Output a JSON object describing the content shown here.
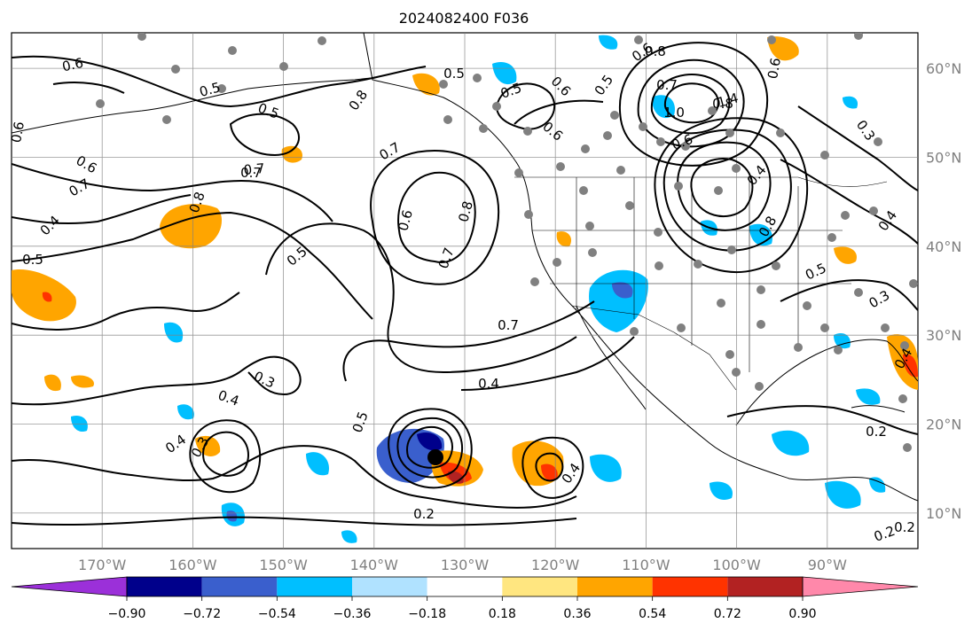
{
  "title": "2024082400 F036",
  "longitude_labels": [
    "170°W",
    "160°W",
    "150°W",
    "140°W",
    "130°W",
    "120°W",
    "110°W",
    "100°W",
    "90°W"
  ],
  "latitude_labels": [
    "60°N",
    "50°N",
    "40°N",
    "30°N",
    "20°N",
    "10°N"
  ],
  "colorbar": {
    "levels": [
      "−0.90",
      "−0.72",
      "−0.54",
      "−0.36",
      "−0.18",
      "0.18",
      "0.36",
      "0.54",
      "0.72",
      "0.90"
    ],
    "colors": [
      "#9b30d9",
      "#00008b",
      "#3a5fcd",
      "#00bfff",
      "#b0e2ff",
      "#ffffff",
      "#ffe680",
      "#ffa500",
      "#ff3300",
      "#b22222",
      "#ff88aa"
    ],
    "extend": "both"
  },
  "contour_labels": [
    "0.6",
    "0.5",
    "0.5",
    "0.7",
    "0.5",
    "0.6",
    "0.7",
    "0.8",
    "0.4",
    "0.5",
    "0.7",
    "0.7",
    "0.8",
    "0.5",
    "0.6",
    "0.8",
    "0.7",
    "0.5",
    "0.6",
    "0.7",
    "0.4",
    "0.3",
    "0.4",
    "0.5",
    "0.4",
    "0.3",
    "0.2",
    "0.4",
    "0.6",
    "0.5",
    "0.8",
    "0.7",
    "0.6",
    "0.4",
    "0.5",
    "1.4",
    "1.0",
    "0.8",
    "0.6",
    "0.8",
    "0.6",
    "0.3",
    "0.4",
    "0.2",
    "0.3",
    "0.4",
    "0.2",
    "0.2",
    "0.6"
  ],
  "map": {
    "projection": "plate-carree",
    "lon_range": [
      -180,
      -80
    ],
    "lat_range": [
      6,
      64
    ],
    "gridlines": true,
    "field": "vorticity contours with shaded anomaly",
    "colors": {
      "contour": "#000000",
      "grid": "#808080",
      "coast": "#000000",
      "station_dot": "#808080",
      "storm_center": "#000000"
    }
  }
}
